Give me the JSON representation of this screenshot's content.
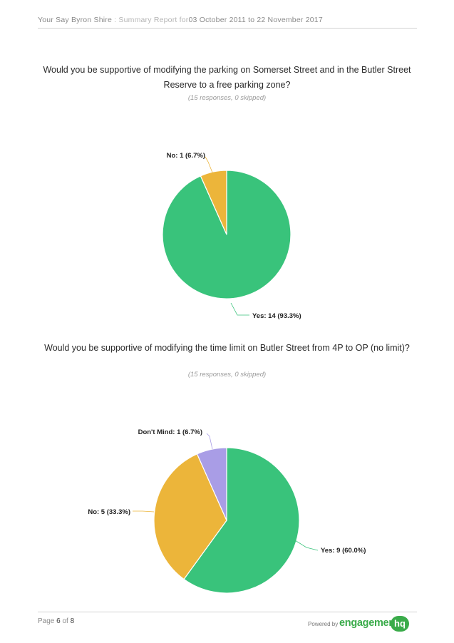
{
  "header": {
    "site": "Your Say Byron Shire",
    "sep": " : ",
    "report_prefix": "Summary Report for",
    "date_range": "03 October 2011 to 22 November 2017"
  },
  "questions": [
    {
      "text": "Would you be supportive of modifying the parking on Somerset Street and in the Butler Street Reserve to a free parking zone?",
      "responses": "(15 responses, 0 skipped)"
    },
    {
      "text": "Would you be supportive of modifying the time limit on Butler Street from 4P to OP (no limit)?",
      "responses": "(15 responses, 0 skipped)"
    }
  ],
  "chart_data": [
    {
      "type": "pie",
      "title": "Would you be supportive of modifying the parking on Somerset Street and in the Butler Street Reserve to a free parking zone?",
      "labels": [
        "Yes",
        "No"
      ],
      "values": [
        14,
        1
      ],
      "percentages": [
        93.3,
        6.7
      ],
      "data_labels": [
        "Yes: 14 (93.3%)",
        "No: 1 (6.7%)"
      ],
      "colors": [
        "#39c37b",
        "#ecb53a"
      ],
      "start": "12 o'clock",
      "direction": "clockwise"
    },
    {
      "type": "pie",
      "title": "Would you be supportive of modifying the time limit on Butler Street from 4P to OP (no limit)?",
      "labels": [
        "Yes",
        "No",
        "Don't Mind"
      ],
      "values": [
        9,
        5,
        1
      ],
      "percentages": [
        60.0,
        33.3,
        6.7
      ],
      "data_labels": [
        "Yes: 9 (60.0%)",
        "No: 5 (33.3%)",
        "Don't Mind: 1 (6.7%)"
      ],
      "colors": [
        "#39c37b",
        "#ecb53a",
        "#a99de6"
      ],
      "start": "12 o'clock",
      "direction": "clockwise"
    }
  ],
  "footer": {
    "page_prefix": "Page ",
    "page_current": "6",
    "page_of": " of ",
    "page_total": "8",
    "powered_by": "Powered by",
    "brand": "engagement",
    "brand_suffix": "hq"
  }
}
